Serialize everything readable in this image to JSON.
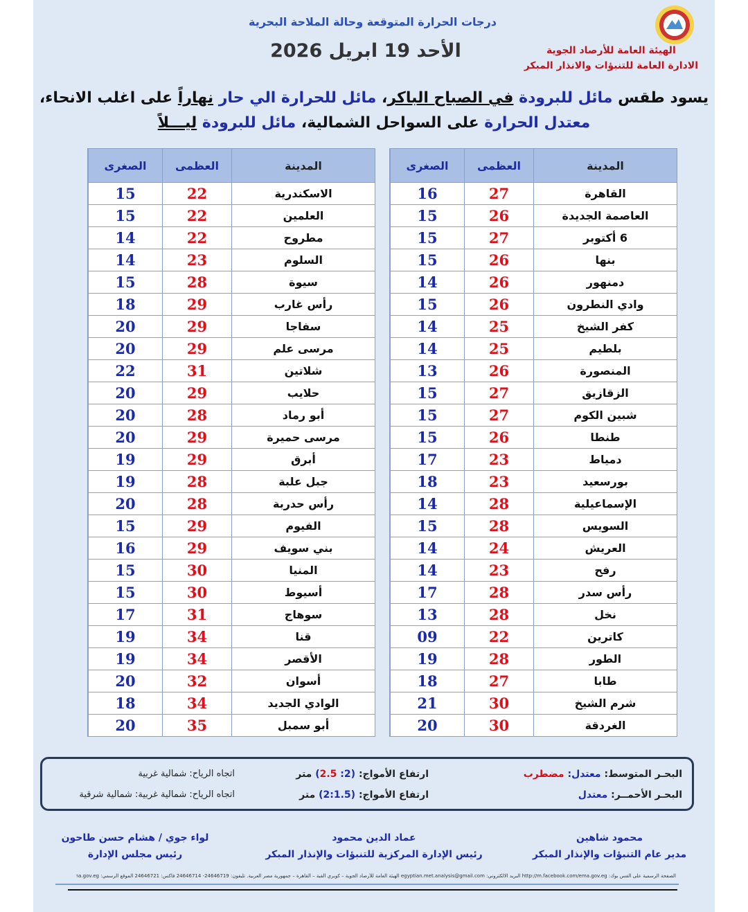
{
  "header": {
    "org_line1": "الهيئة العامة للأرصاد الجوية",
    "org_line2": "الادارة العامة للتنبؤات والانذار المبكر",
    "subtitle": "درجات الحرارة المتوقعة وحالة الملاحة البحرية",
    "date": "الأحد 19 ابريل 2026"
  },
  "summary": {
    "p1": "يسود طقس ",
    "p2": "مائل للبرودة",
    "p3": " ",
    "p4": "في الصباح الباكر",
    "p5": "، ",
    "p6": "مائل للحرارة الي حار",
    "p7": " ",
    "p8": "نهاراً",
    "p9": " على اغلب الانحاء،",
    "p10": "معتدل الحرارة",
    "p11": " على السواحل الشمالية، ",
    "p12": "مائل للبرودة",
    "p13": " ",
    "p14": "ليـــلاً"
  },
  "columns": {
    "city": "المدينة",
    "max": "العظمى",
    "min": "الصغرى"
  },
  "colors": {
    "max": "#e0101a",
    "min": "#1a2aa8",
    "header_bg": "#a9c0e4"
  },
  "table_right": [
    [
      "القاهرة",
      "27",
      "16"
    ],
    [
      "العاصمة الجديدة",
      "26",
      "15"
    ],
    [
      "6 أكتوبر",
      "27",
      "15"
    ],
    [
      "بنها",
      "26",
      "15"
    ],
    [
      "دمنهور",
      "26",
      "14"
    ],
    [
      "وادي النطرون",
      "26",
      "15"
    ],
    [
      "كفر الشيخ",
      "25",
      "14"
    ],
    [
      "بلطيم",
      "25",
      "14"
    ],
    [
      "المنصورة",
      "26",
      "13"
    ],
    [
      "الزقازيق",
      "27",
      "15"
    ],
    [
      "شبين الكوم",
      "27",
      "15"
    ],
    [
      "طنطا",
      "26",
      "15"
    ],
    [
      "دمياط",
      "23",
      "17"
    ],
    [
      "بورسعيد",
      "23",
      "18"
    ],
    [
      "الإسماعيلية",
      "28",
      "14"
    ],
    [
      "السويس",
      "28",
      "15"
    ],
    [
      "العريش",
      "24",
      "14"
    ],
    [
      "رفح",
      "23",
      "14"
    ],
    [
      "رأس سدر",
      "28",
      "17"
    ],
    [
      "نخل",
      "28",
      "13"
    ],
    [
      "كاترين",
      "22",
      "09"
    ],
    [
      "الطور",
      "28",
      "19"
    ],
    [
      "طابا",
      "27",
      "18"
    ],
    [
      "شرم الشيخ",
      "30",
      "21"
    ],
    [
      "الغردقة",
      "30",
      "20"
    ]
  ],
  "table_left": [
    [
      "الاسكندرية",
      "22",
      "15"
    ],
    [
      "العلمين",
      "22",
      "15"
    ],
    [
      "مطروح",
      "22",
      "14"
    ],
    [
      "السلوم",
      "23",
      "14"
    ],
    [
      "سيوة",
      "28",
      "15"
    ],
    [
      "رأس غارب",
      "29",
      "18"
    ],
    [
      "سفاجا",
      "29",
      "20"
    ],
    [
      "مرسى علم",
      "29",
      "20"
    ],
    [
      "شلاتين",
      "31",
      "22"
    ],
    [
      "حلايب",
      "29",
      "20"
    ],
    [
      "أبو رماد",
      "28",
      "20"
    ],
    [
      "مرسى حميرة",
      "29",
      "20"
    ],
    [
      "أبرق",
      "29",
      "19"
    ],
    [
      "جبل علبة",
      "28",
      "19"
    ],
    [
      "رأس حدربة",
      "28",
      "20"
    ],
    [
      "الفيوم",
      "29",
      "15"
    ],
    [
      "بني سويف",
      "29",
      "16"
    ],
    [
      "المنيا",
      "30",
      "15"
    ],
    [
      "أسيوط",
      "30",
      "15"
    ],
    [
      "سوهاج",
      "31",
      "17"
    ],
    [
      "قنا",
      "34",
      "19"
    ],
    [
      "الأقصر",
      "34",
      "19"
    ],
    [
      "أسوان",
      "32",
      "20"
    ],
    [
      "الوادي الجديد",
      "34",
      "18"
    ],
    [
      "أبو سمبل",
      "35",
      "20"
    ]
  ],
  "sea": {
    "med": {
      "label": "البحـر المتوسط: ",
      "state1": "معتدل: ",
      "state2": "مضطرب",
      "waves_label": "ارتفاع الأمواج: ",
      "w1": "(2: ",
      "w2": "2.5",
      "w3": ")",
      "unit": " متر",
      "wind": "اتجاه الرياح: شمالية غربية"
    },
    "red": {
      "label": "البحـر الأحمــر: ",
      "state1": "معتدل",
      "waves_label": "ارتفاع الأمواج: ",
      "w1": "(2:1.5)",
      "unit": " متر",
      "wind": "اتجاه الرياح: شمالية غربية: شمالية شرقية"
    }
  },
  "signatures": [
    {
      "name": "محمود شاهين",
      "role": "مدير عام التنبؤات والإنذار المبكر"
    },
    {
      "name": "عماد الدين محمود",
      "role": "رئيس الإدارة المركزية للتنبؤات والإنذار المبكر"
    },
    {
      "name": "لواء جوي / هشام حسن طاحون",
      "role": "رئيس مجلس الإدارة"
    }
  ],
  "footer": "الصفحة الرسمية على الفس بوك: http://m.facebook.com/ema.gov.eg البريد الالكتروني: egyptian.met.analysis@gmail.com الهيئة العامة للأرصاد الجوية – كوبري القبة – القاهرة – جمهورية مصر العربية. تليفون: 24646719- 24646714 فاكس: 24646721 الموقع الرسمي: www.ema.gov.eg"
}
